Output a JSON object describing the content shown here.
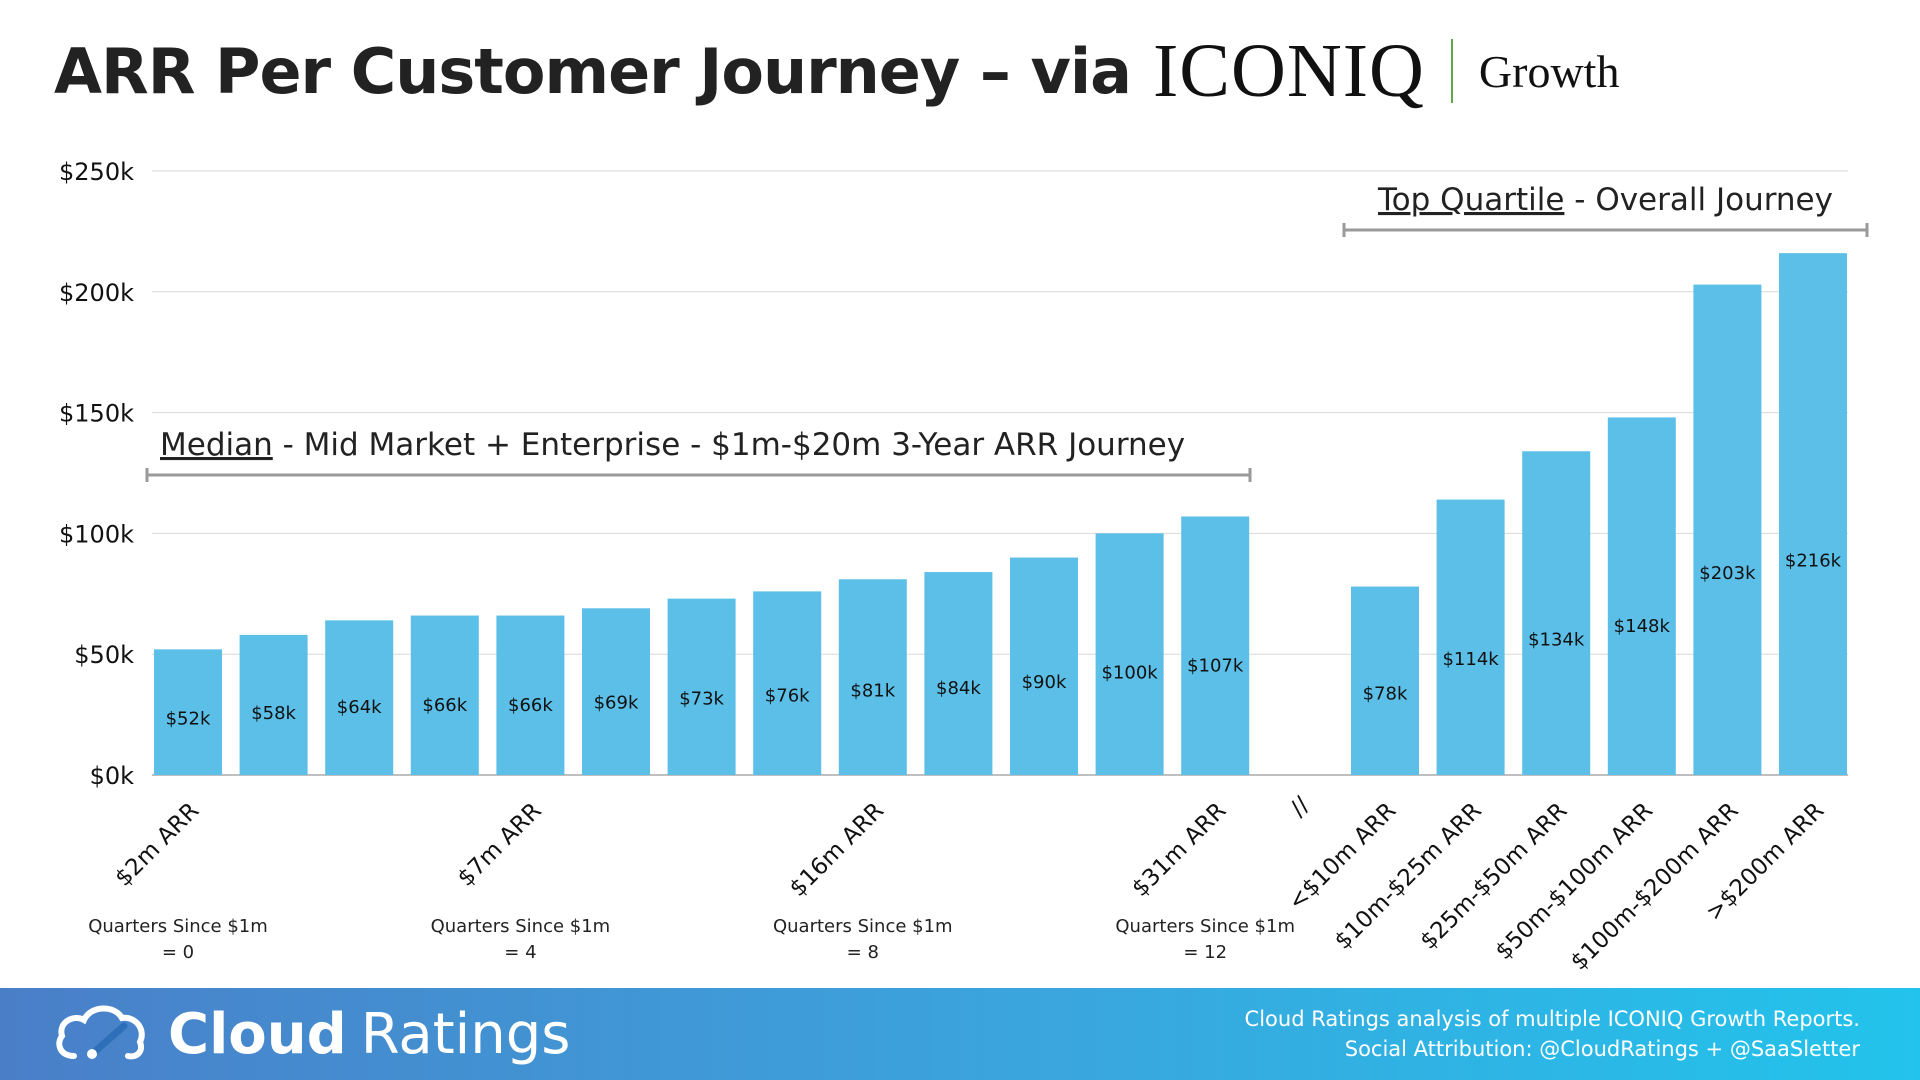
{
  "header": {
    "title": "ARR Per Customer Journey – via",
    "brand_name": "ICONIQ",
    "brand_suffix": "Growth"
  },
  "colors": {
    "bar": "#5bbfe8",
    "grid": "#d9d9d9",
    "bracket": "#9a9a9a",
    "footer_from": "#4a7fc8",
    "footer_to": "#22c3ec"
  },
  "chart_data": {
    "type": "bar",
    "ylim": [
      0,
      250
    ],
    "yticks": [
      "$0k",
      "$50k",
      "$100k",
      "$150k",
      "$200k",
      "$250k"
    ],
    "grid": true,
    "median": {
      "label_underlined": "Median",
      "label_rest": " - Mid Market + Enterprise - $1m-$20m 3-Year ARR Journey",
      "values": [
        52,
        58,
        64,
        66,
        66,
        69,
        73,
        76,
        81,
        84,
        90,
        100,
        107
      ],
      "value_labels": [
        "$52k",
        "$58k",
        "$64k",
        "$66k",
        "$66k",
        "$69k",
        "$73k",
        "$76k",
        "$81k",
        "$84k",
        "$90k",
        "$100k",
        "$107k"
      ],
      "category_labels": [
        {
          "bar": 0,
          "text": "$2m ARR"
        },
        {
          "bar": 4,
          "text": "$7m ARR"
        },
        {
          "bar": 8,
          "text": "$16m ARR"
        },
        {
          "bar": 12,
          "text": "$31m ARR"
        }
      ],
      "quarter_notes": [
        {
          "bar": 0,
          "line1": "Quarters Since $1m",
          "line2": "= 0"
        },
        {
          "bar": 4,
          "line1": "Quarters Since $1m",
          "line2": "= 4"
        },
        {
          "bar": 8,
          "line1": "Quarters Since $1m",
          "line2": "= 8"
        },
        {
          "bar": 12,
          "line1": "Quarters Since $1m",
          "line2": "= 12"
        }
      ]
    },
    "break_marker": "//",
    "top_quartile": {
      "label_underlined": "Top Quartile",
      "label_rest": " - Overall Journey",
      "categories": [
        "<$10m ARR",
        "$10m-$25m ARR",
        "$25m-$50m ARR",
        "$50m-$100m ARR",
        "$100m-$200m ARR",
        ">$200m ARR"
      ],
      "values": [
        78,
        114,
        134,
        148,
        203,
        216
      ],
      "value_labels": [
        "$78k",
        "$114k",
        "$134k",
        "$148k",
        "$203k",
        "$216k"
      ]
    }
  },
  "footer": {
    "brand_bold": "Cloud",
    "brand_light": "Ratings",
    "credit_line1": "Cloud Ratings analysis of multiple ICONIQ Growth Reports.",
    "credit_line2": "Social Attribution: @CloudRatings + @SaaSletter"
  }
}
